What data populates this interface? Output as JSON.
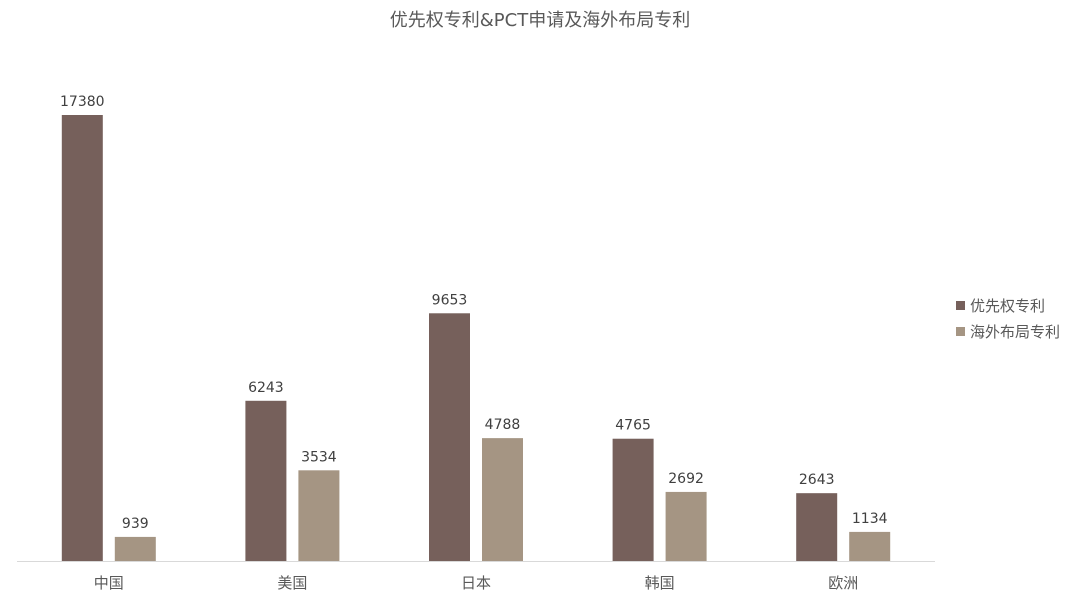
{
  "chart_data": {
    "type": "bar",
    "title": "优先权专利&PCT申请及海外布局专利",
    "categories": [
      "中国",
      "美国",
      "日本",
      "韩国",
      "欧洲"
    ],
    "series": [
      {
        "name": "优先权专利",
        "values": [
          17380,
          6243,
          9653,
          4765,
          2643
        ],
        "color": "#76605b"
      },
      {
        "name": "海外布局专利",
        "values": [
          939,
          3534,
          4788,
          2692,
          1134
        ],
        "color": "#a59583"
      }
    ],
    "xlabel": "",
    "ylabel": "",
    "ylim": [
      0,
      17380
    ],
    "grid": false,
    "legend": "right",
    "data_labels": true
  }
}
